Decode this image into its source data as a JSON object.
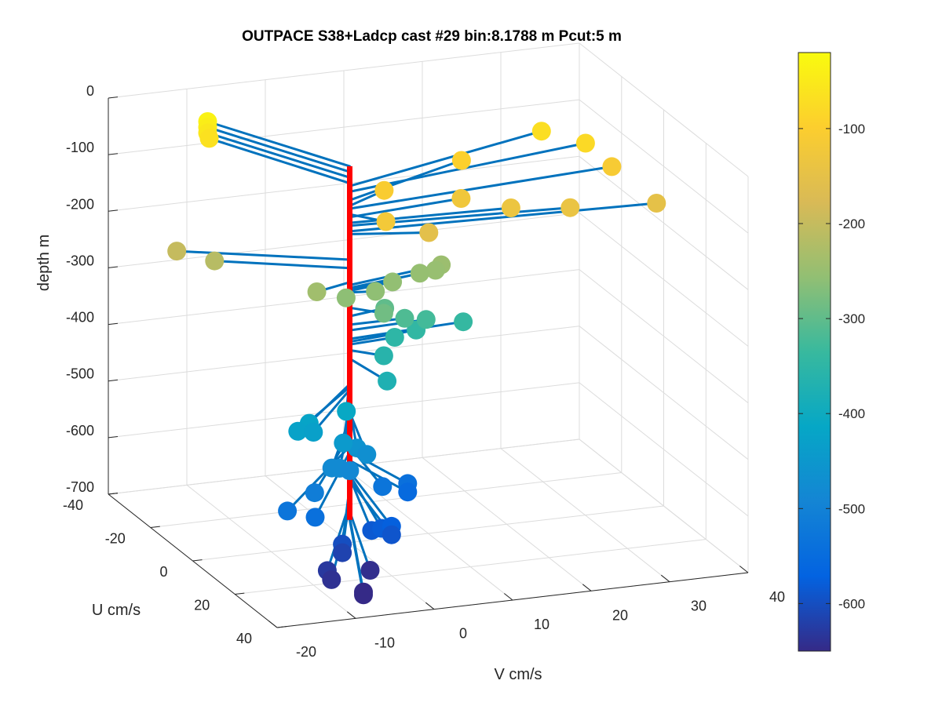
{
  "chart_data": {
    "type": "scatter",
    "title": "OUTPACE S38+Ladcp cast #29 bin:8.1788 m  Pcut:5 m",
    "xlabel": "V cm/s",
    "ylabel": "U cm/s",
    "zlabel": "depth m",
    "xlim": [
      -20,
      40
    ],
    "ylim": [
      -40,
      40
    ],
    "zlim": [
      -700,
      0
    ],
    "x_ticks": [
      "-20",
      "-10",
      "0",
      "10",
      "20",
      "30",
      "40"
    ],
    "y_ticks": [
      "-40",
      "-20",
      "0",
      "20",
      "40"
    ],
    "z_ticks": [
      "0",
      "-100",
      "-200",
      "-300",
      "-400",
      "-500",
      "-600",
      "-700"
    ],
    "grid": true,
    "colorbar": {
      "range": [
        -650,
        -20
      ],
      "ticks": [
        "-100",
        "-200",
        "-300",
        "-400",
        "-500",
        "-600"
      ],
      "colormap": [
        "#352a87",
        "#0363e1",
        "#1485d4",
        "#06a7c6",
        "#38b99e",
        "#92bf73",
        "#d9ba56",
        "#fcce2e",
        "#f9fb0e"
      ]
    },
    "marker_color_note": "marker color = depth",
    "stick_color": "#0072bd",
    "profile_line_color": "#ff0000",
    "points": [
      {
        "v": -9.5,
        "u": -32,
        "z": -35
      },
      {
        "v": -9.5,
        "u": -32,
        "z": -45
      },
      {
        "v": -9.5,
        "u": -32,
        "z": -55
      },
      {
        "v": -9.3,
        "u": -32,
        "z": -65
      },
      {
        "v": 29,
        "u": -17,
        "z": -70
      },
      {
        "v": 33,
        "u": -11,
        "z": -80
      },
      {
        "v": 18,
        "u": -14,
        "z": -95
      },
      {
        "v": 35,
        "u": -6,
        "z": -110
      },
      {
        "v": 6,
        "u": -6,
        "z": -105
      },
      {
        "v": 27,
        "u": 4,
        "z": -140
      },
      {
        "v": 20,
        "u": 2,
        "z": -135
      },
      {
        "v": 15,
        "u": -3,
        "z": -125
      },
      {
        "v": 3,
        "u": 6,
        "z": -120
      },
      {
        "v": 38,
        "u": 4,
        "z": -150
      },
      {
        "v": 9,
        "u": 4,
        "z": -155
      },
      {
        "v": -18,
        "u": -15,
        "z": -200
      },
      {
        "v": -14,
        "u": -12,
        "z": -215
      },
      {
        "v": -5,
        "u": 3,
        "z": -240
      },
      {
        "v": 13,
        "u": -5,
        "z": -245
      },
      {
        "v": 12,
        "u": -4,
        "z": -250
      },
      {
        "v": 10,
        "u": -4,
        "z": -252
      },
      {
        "v": 6,
        "u": -2,
        "z": -255
      },
      {
        "v": 3,
        "u": 1,
        "z": -258
      },
      {
        "v": -1,
        "u": 2,
        "z": -260
      },
      {
        "v": 3,
        "u": 5,
        "z": -285
      },
      {
        "v": 5,
        "u": -2,
        "z": -300
      },
      {
        "v": 7,
        "u": 0,
        "z": -315
      },
      {
        "v": 10,
        "u": -1,
        "z": -325
      },
      {
        "v": 15,
        "u": -2,
        "z": -340
      },
      {
        "v": 9,
        "u": -2,
        "z": -345
      },
      {
        "v": 6,
        "u": -1,
        "z": -350
      },
      {
        "v": 3,
        "u": 5,
        "z": -360
      },
      {
        "v": 1,
        "u": 14,
        "z": -375
      },
      {
        "v": -5,
        "u": 17,
        "z": -410
      },
      {
        "v": -10,
        "u": 18,
        "z": -420
      },
      {
        "v": -12,
        "u": 20,
        "z": -425
      },
      {
        "v": -10,
        "u": 20,
        "z": -430
      },
      {
        "v": -7,
        "u": 23,
        "z": -445
      },
      {
        "v": -5,
        "u": 22,
        "z": -460
      },
      {
        "v": -4,
        "u": 23,
        "z": -470
      },
      {
        "v": -9,
        "u": 25,
        "z": -480
      },
      {
        "v": -8,
        "u": 25,
        "z": -482
      },
      {
        "v": -7,
        "u": 26,
        "z": -485
      },
      {
        "v": -12,
        "u": 28,
        "z": -510
      },
      {
        "v": -16,
        "u": 30,
        "z": -530
      },
      {
        "v": -13,
        "u": 32,
        "z": -540
      },
      {
        "v": -2,
        "u": 23,
        "z": -530
      },
      {
        "v": 2,
        "u": 20,
        "z": -540
      },
      {
        "v": 2,
        "u": 20,
        "z": -555
      },
      {
        "v": -3,
        "u": 31,
        "z": -575
      },
      {
        "v": -4,
        "u": 30,
        "z": -580
      },
      {
        "v": -5,
        "u": 29,
        "z": -585
      },
      {
        "v": -3,
        "u": 31,
        "z": -590
      },
      {
        "v": -9,
        "u": 30,
        "z": -600
      },
      {
        "v": -9,
        "u": 30,
        "z": -615
      },
      {
        "v": -12,
        "u": 34,
        "z": -630
      },
      {
        "v": -12,
        "u": 36,
        "z": -640
      },
      {
        "v": -6,
        "u": 32,
        "z": -645
      },
      {
        "v": -9,
        "u": 40,
        "z": -655
      },
      {
        "v": -9,
        "u": 40,
        "z": -660
      }
    ]
  }
}
